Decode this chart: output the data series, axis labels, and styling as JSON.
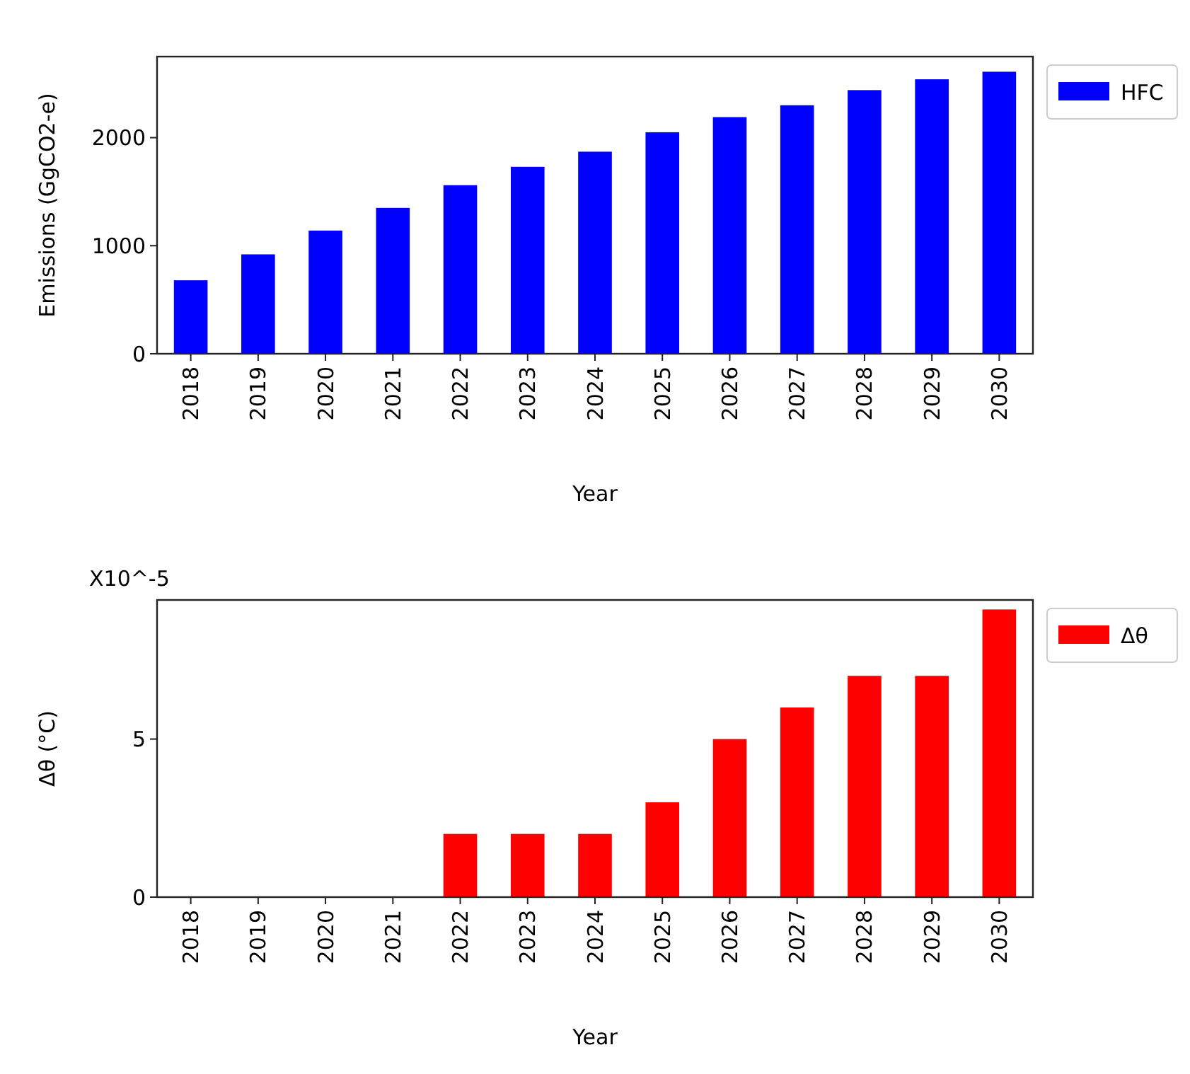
{
  "chart_data": [
    {
      "type": "bar",
      "categories": [
        "2018",
        "2019",
        "2020",
        "2021",
        "2022",
        "2023",
        "2024",
        "2025",
        "2026",
        "2027",
        "2028",
        "2029",
        "2030"
      ],
      "xlabel": "Year",
      "ylabel": "Emissions (GgCO2-e)",
      "series": [
        {
          "name": "HFC",
          "color": "#0000ff",
          "values": [
            680,
            920,
            1140,
            1350,
            1560,
            1730,
            1870,
            2050,
            2190,
            2300,
            2440,
            2540,
            2610
          ]
        }
      ],
      "ylim": [
        0,
        2750
      ],
      "yticks": [
        0,
        1000,
        2000
      ],
      "legend": "right",
      "grid": false
    },
    {
      "type": "bar",
      "categories": [
        "2018",
        "2019",
        "2020",
        "2021",
        "2022",
        "2023",
        "2024",
        "2025",
        "2026",
        "2027",
        "2028",
        "2029",
        "2030"
      ],
      "xlabel": "Year",
      "ylabel": "Δθ (°C)",
      "annotations": [
        "X10^-5"
      ],
      "series": [
        {
          "name": "Δθ",
          "color": "#ff0000",
          "values": [
            0,
            0,
            0,
            0,
            2,
            2,
            2,
            3,
            5,
            6,
            7,
            7,
            9.1
          ]
        }
      ],
      "ylim": [
        0,
        9.4
      ],
      "yticks": [
        0,
        5
      ],
      "legend": "right",
      "grid": false
    }
  ]
}
